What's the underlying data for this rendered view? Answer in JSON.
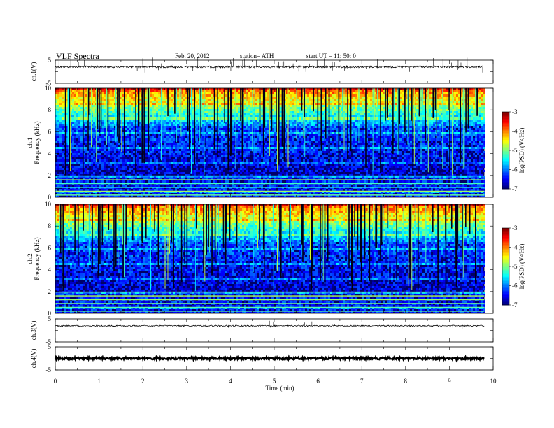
{
  "header": {
    "title": "VLF  Spectra",
    "date": "Feb. 20, 2012",
    "station": "station= ATH",
    "start": "start  UT  =   11: 50: 0"
  },
  "chart_data": [
    {
      "type": "line",
      "ylabel": "ch.1(V)",
      "ylim": [
        -5,
        5
      ],
      "yticks": [
        "5",
        "-5"
      ],
      "baseline": 2.1
    },
    {
      "type": "heatmap",
      "ylabel_channel": "ch.1",
      "ylabel": "Frequency  (kHz)",
      "ylim": [
        0,
        10
      ],
      "yticks": [
        "0",
        "2",
        "4",
        "6",
        "8",
        "10"
      ],
      "colorbar": {
        "label": "log(PSD) (V²/Hz)",
        "range": [
          -7,
          -3
        ],
        "ticks": [
          "-3",
          "-4",
          "-5",
          "-6",
          "-7"
        ]
      }
    },
    {
      "type": "heatmap",
      "ylabel_channel": "ch.2",
      "ylabel": "Frequency  (kHz)",
      "ylim": [
        0,
        10
      ],
      "yticks": [
        "0",
        "2",
        "4",
        "6",
        "8",
        "10"
      ],
      "colorbar": {
        "label": "log(PSD) (V²/Hz)",
        "range": [
          -7,
          -3
        ],
        "ticks": [
          "-3",
          "-4",
          "-5",
          "-6",
          "-7"
        ]
      }
    },
    {
      "type": "line",
      "ylabel": "ch.3(V)",
      "ylim": [
        -5,
        5
      ],
      "yticks": [
        "5",
        "-5"
      ],
      "baseline": 2.0
    },
    {
      "type": "line",
      "ylabel": "ch.4(V)",
      "ylim": [
        -5,
        5
      ],
      "yticks": [
        "5",
        "-5"
      ],
      "baseline": 0.0
    }
  ],
  "xaxis": {
    "label": "Time  (min)",
    "xlim": [
      0,
      10
    ],
    "ticks": [
      "0",
      "1",
      "2",
      "3",
      "4",
      "5",
      "6",
      "7",
      "8",
      "9",
      "10"
    ],
    "data_end": 9.8
  }
}
